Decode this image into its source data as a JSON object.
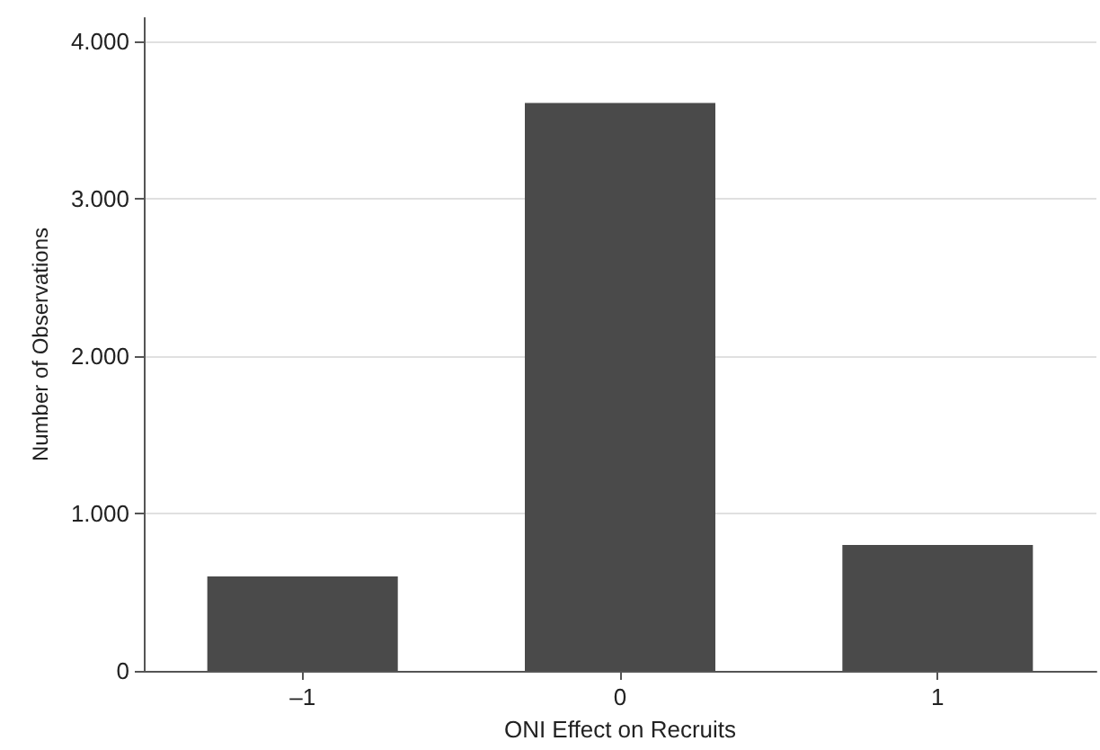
{
  "chart_data": {
    "type": "bar",
    "xlabel": "ONI Effect on Recruits",
    "ylabel": "Number of Observations",
    "categories": [
      "–1",
      "0",
      "1"
    ],
    "values": [
      600,
      3610,
      800
    ],
    "color": "#4a4a4a",
    "ylim": [
      0,
      4150
    ],
    "yticks": [
      0,
      {
        "value": 1000,
        "label": "1.000"
      },
      {
        "value": 2000,
        "label": "2.000"
      },
      {
        "value": 3000,
        "label": "3.000"
      },
      {
        "value": 4000,
        "label": "4.000"
      }
    ],
    "grid": "y"
  }
}
